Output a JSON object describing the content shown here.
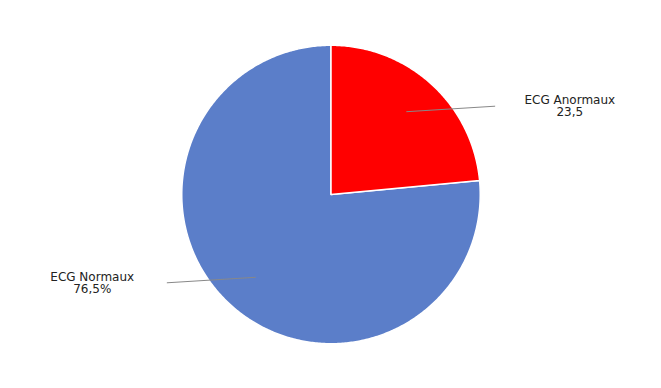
{
  "chart_data": {
    "type": "pie",
    "categories": [
      "ECG Normaux",
      "ECG Anormaux"
    ],
    "values": [
      76.5,
      23.5
    ],
    "value_labels": [
      "76,5%",
      "23,5"
    ],
    "colors": [
      "#5b7ec9",
      "#ff0000"
    ],
    "data_labels": true
  }
}
